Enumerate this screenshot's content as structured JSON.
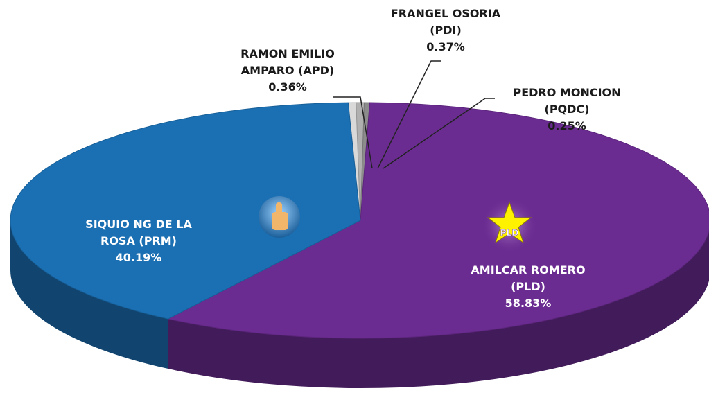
{
  "chart_data": {
    "type": "pie",
    "categories": [
      "RAMON EMILIO AMPARO (APD)",
      "FRANGEL OSORIA (PDI)",
      "PEDRO MONCION (PQDC)",
      "AMILCAR ROMERO (PLD)",
      "SIQUIO NG DE LA ROSA (PRM)"
    ],
    "values": [
      0.36,
      0.37,
      0.25,
      58.83,
      40.19
    ],
    "value_labels": [
      "0.36%",
      "0.37%",
      "0.25%",
      "58.83%",
      "40.19%"
    ],
    "colors": [
      "#d9d9d9",
      "#b0b0b0",
      "#8c8c8c",
      "#6b2c91",
      "#1b70b3"
    ],
    "annotations": [
      "PLD"
    ]
  }
}
